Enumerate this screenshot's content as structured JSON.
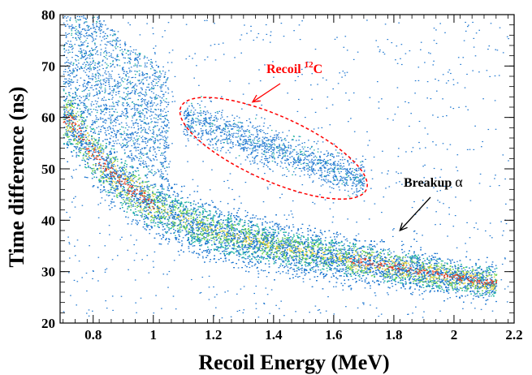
{
  "chart_data": {
    "type": "heatmap",
    "title": "",
    "xlabel": "Recoil Energy (MeV)",
    "ylabel": "Time difference (ns)",
    "xlim": [
      0.69,
      2.2
    ],
    "ylim": [
      20,
      80
    ],
    "xticks": [
      0.8,
      1,
      1.2,
      1.4,
      1.6,
      1.8,
      2,
      2.2
    ],
    "xtick_labels": [
      "0.8",
      "1",
      "1.2",
      "1.4",
      "1.6",
      "1.8",
      "2",
      "2.2"
    ],
    "yticks": [
      20,
      30,
      40,
      50,
      60,
      70,
      80
    ],
    "ytick_labels": [
      "20",
      "30",
      "40",
      "50",
      "60",
      "70",
      "80"
    ],
    "colors": {
      "low": "#1f77d0",
      "mid_low": "#22b5a0",
      "mid": "#6fd35a",
      "mid_high": "#e8d23a",
      "high": "#e8401c",
      "annotation": "#ff0000"
    },
    "bands": [
      {
        "name": "Breakup α",
        "ridge": [
          {
            "x": 0.72,
            "y": 60
          },
          {
            "x": 0.8,
            "y": 53
          },
          {
            "x": 0.9,
            "y": 47
          },
          {
            "x": 1.0,
            "y": 43
          },
          {
            "x": 1.1,
            "y": 40
          },
          {
            "x": 1.2,
            "y": 38
          },
          {
            "x": 1.4,
            "y": 35
          },
          {
            "x": 1.6,
            "y": 33
          },
          {
            "x": 1.8,
            "y": 31
          },
          {
            "x": 2.0,
            "y": 29
          },
          {
            "x": 2.12,
            "y": 28
          }
        ]
      },
      {
        "name": "Recoil 12C",
        "center": {
          "x": 1.38,
          "y": 54
        },
        "extent_x": [
          1.08,
          1.7
        ],
        "extent_y": [
          46,
          62
        ]
      }
    ],
    "annotations": [
      {
        "label": "Recoil ",
        "superscript": "12",
        "suffix": "C",
        "color": "#ff0000",
        "points_to": {
          "x": 1.33,
          "y": 63
        }
      },
      {
        "label": "Breakup ",
        "symbol": "α",
        "color": "#000000",
        "points_to": {
          "x": 1.82,
          "y": 38
        }
      }
    ]
  }
}
